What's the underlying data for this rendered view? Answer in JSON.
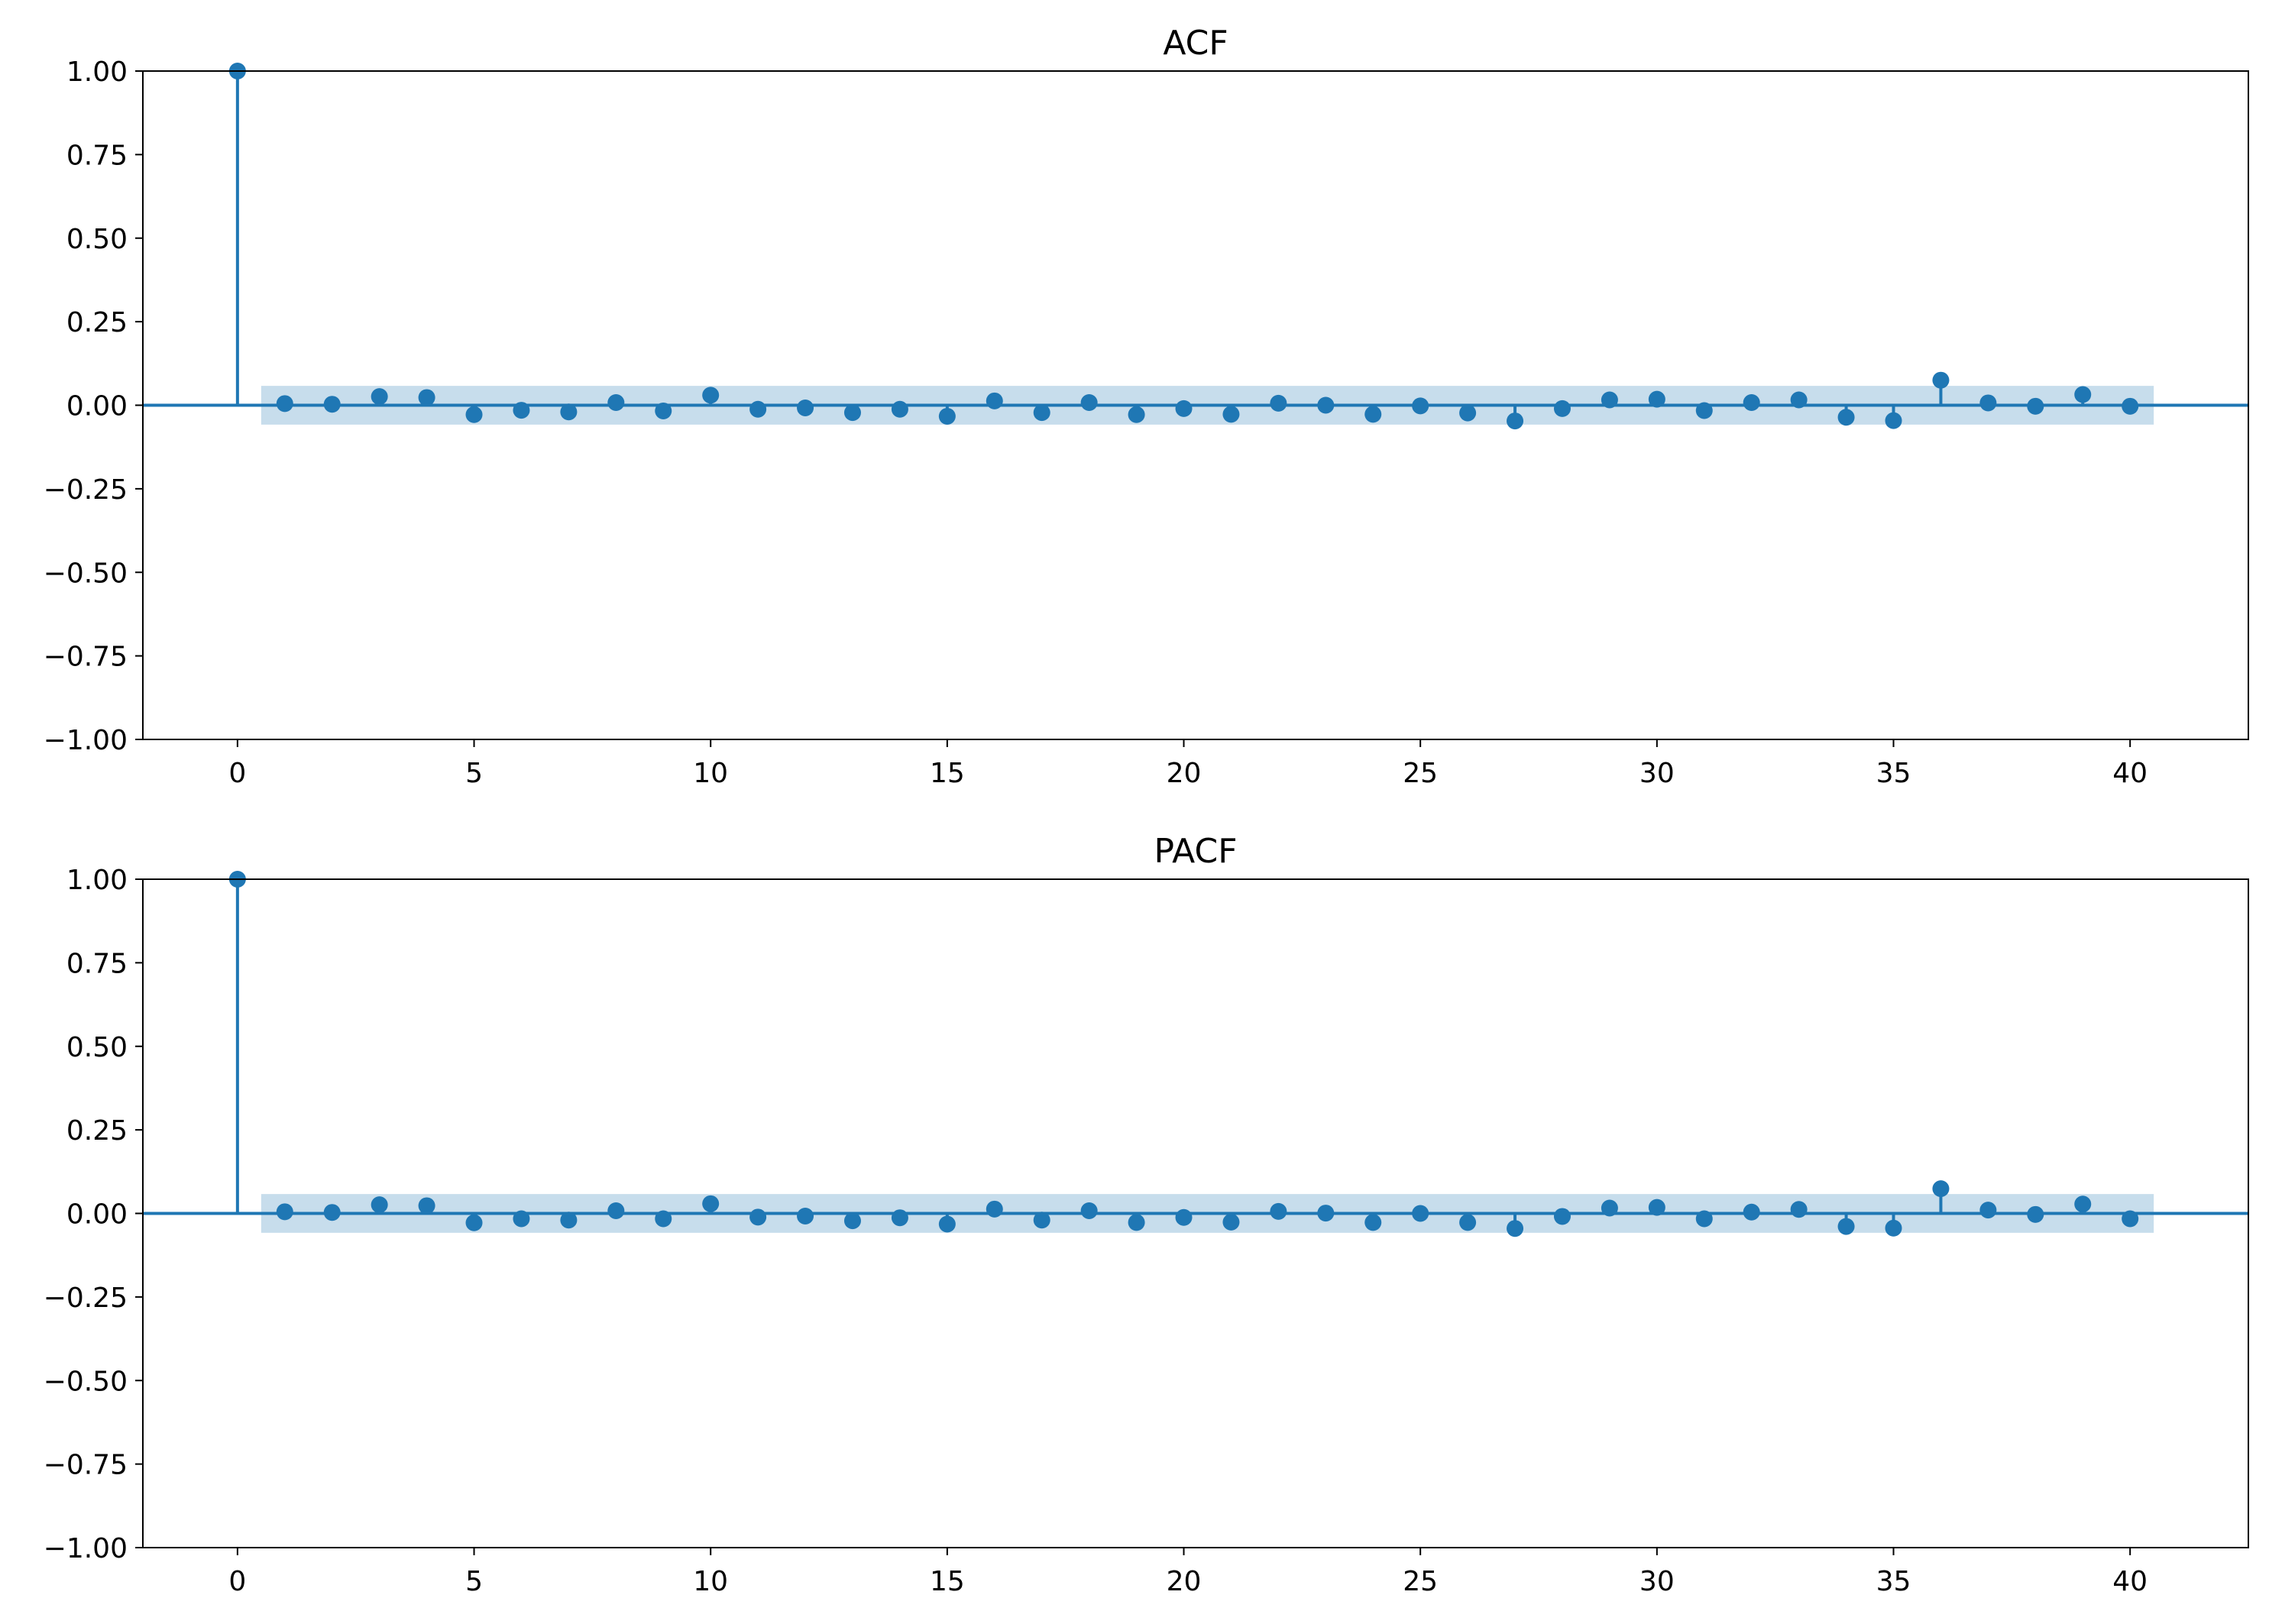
{
  "colors": {
    "stem": "#1f77b4",
    "band": "#1f77b4",
    "axis": "#000000",
    "background": "#ffffff"
  },
  "chart_data": [
    {
      "type": "scatter",
      "title": "ACF",
      "xlabel": "",
      "ylabel": "",
      "xlim": [
        -2,
        42.5
      ],
      "ylim": [
        -1.0,
        1.0
      ],
      "x_ticks": [
        "0",
        "5",
        "10",
        "15",
        "20",
        "25",
        "30",
        "35",
        "40"
      ],
      "y_ticks": [
        "1.00",
        "0.75",
        "0.50",
        "0.25",
        "0.00",
        "−0.25",
        "−0.50",
        "−0.75",
        "−1.00"
      ],
      "grid": false,
      "confidence_band": [
        -0.058,
        0.058
      ],
      "lags": [
        0,
        1,
        2,
        3,
        4,
        5,
        6,
        7,
        8,
        9,
        10,
        11,
        12,
        13,
        14,
        15,
        16,
        17,
        18,
        19,
        20,
        21,
        22,
        23,
        24,
        25,
        26,
        27,
        28,
        29,
        30,
        31,
        32,
        33,
        34,
        35,
        36,
        37,
        38,
        39,
        40
      ],
      "values": [
        1.0,
        0.005,
        0.003,
        0.026,
        0.023,
        -0.028,
        -0.015,
        -0.02,
        0.008,
        -0.017,
        0.03,
        -0.012,
        -0.008,
        -0.022,
        -0.012,
        -0.033,
        0.013,
        -0.022,
        0.008,
        -0.028,
        -0.01,
        -0.027,
        0.006,
        0.0,
        -0.027,
        -0.002,
        -0.023,
        -0.047,
        -0.01,
        0.016,
        0.018,
        -0.016,
        0.008,
        0.016,
        -0.036,
        -0.046,
        0.075,
        0.007,
        -0.003,
        0.032,
        -0.003
      ]
    },
    {
      "type": "scatter",
      "title": "PACF",
      "xlabel": "",
      "ylabel": "",
      "xlim": [
        -2,
        42.5
      ],
      "ylim": [
        -1.0,
        1.0
      ],
      "x_ticks": [
        "0",
        "5",
        "10",
        "15",
        "20",
        "25",
        "30",
        "35",
        "40"
      ],
      "y_ticks": [
        "1.00",
        "0.75",
        "0.50",
        "0.25",
        "0.00",
        "−0.25",
        "−0.50",
        "−0.75",
        "−1.00"
      ],
      "grid": false,
      "confidence_band": [
        -0.058,
        0.058
      ],
      "lags": [
        0,
        1,
        2,
        3,
        4,
        5,
        6,
        7,
        8,
        9,
        10,
        11,
        12,
        13,
        14,
        15,
        16,
        17,
        18,
        19,
        20,
        21,
        22,
        23,
        24,
        25,
        26,
        27,
        28,
        29,
        30,
        31,
        32,
        33,
        34,
        35,
        36,
        37,
        38,
        39,
        40
      ],
      "values": [
        1.0,
        0.005,
        0.003,
        0.026,
        0.023,
        -0.028,
        -0.016,
        -0.02,
        0.008,
        -0.016,
        0.029,
        -0.011,
        -0.008,
        -0.022,
        -0.013,
        -0.032,
        0.013,
        -0.02,
        0.008,
        -0.027,
        -0.012,
        -0.026,
        0.006,
        0.001,
        -0.027,
        0.0,
        -0.027,
        -0.045,
        -0.009,
        0.016,
        0.018,
        -0.016,
        0.004,
        0.012,
        -0.039,
        -0.044,
        0.074,
        0.01,
        -0.003,
        0.028,
        -0.016
      ]
    }
  ]
}
